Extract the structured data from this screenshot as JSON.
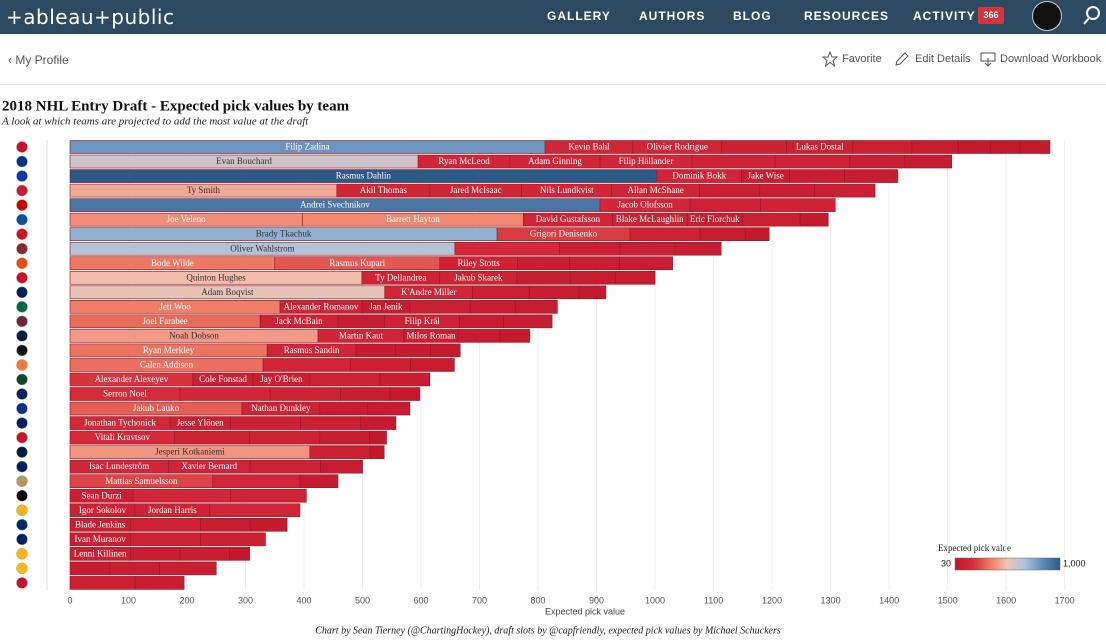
{
  "header": {
    "logo": "+ableau+public",
    "nav": [
      "GALLERY",
      "AUTHORS",
      "BLOG",
      "RESOURCES",
      "ACTIVITY"
    ],
    "badge": "366"
  },
  "toolbar": {
    "back": "My Profile",
    "actions": [
      "Favorite",
      "Edit Details",
      "Download Workbook"
    ]
  },
  "chart_data": {
    "type": "stacked-bar",
    "title": "2018 NHL Entry Draft - Expected pick values by team",
    "subtitle": "A look at which teams are projected to add the most value at the draft",
    "x_label": "Expected pick value",
    "credit": "Chart by Sean Tierney (@ChartingHockey), draft slots by @capfriendly, expected pick values by Michael Schuckers",
    "xlim": [
      0,
      1740
    ],
    "xticks": [
      0,
      100,
      200,
      300,
      400,
      500,
      600,
      700,
      800,
      900,
      1000,
      1100,
      1200,
      1300,
      1400,
      1500,
      1600,
      1700
    ],
    "grid": true,
    "legend": {
      "title": "Expected pick value",
      "min": 30,
      "max": {
        "value": 1000,
        "label": "1,000"
      },
      "colors": [
        "#c3172c",
        "#d42a3a",
        "#ee7b64",
        "#f3c3b4",
        "#a9c3dc",
        "#5f8bb8",
        "#2b5a86"
      ]
    },
    "bars": [
      {
        "values": [
          812,
          150,
          152,
          111,
          113,
          101,
          79,
          55,
          51,
          51
        ],
        "labels": [
          "Filip Zadina",
          "Kevin Bahl",
          "Olivier Rodrigue",
          null,
          "Lukas Dostal",
          null,
          null,
          null,
          null,
          null
        ]
      },
      {
        "values": [
          595,
          157,
          154,
          157,
          142,
          128,
          94,
          80
        ],
        "labels": [
          "Evan Bouchard",
          "Ryan McLeod",
          "Adam Ginning",
          "Filip Hällander",
          null,
          null,
          null,
          null
        ]
      },
      {
        "values": [
          1003,
          145,
          82,
          94,
          91
        ],
        "labels": [
          "Rasmus Dahlin",
          "Dominik Bokk",
          "Jake Wise",
          null,
          null
        ]
      },
      {
        "values": [
          456,
          159,
          157,
          154,
          150,
          103,
          94,
          103
        ],
        "labels": [
          "Ty Smith",
          "Akil Thomas",
          "Jared McIsaac",
          "Nils Lundkvist",
          "Allan McShane",
          null,
          null,
          null
        ]
      },
      {
        "values": [
          906,
          154,
          120,
          128
        ],
        "labels": [
          "Andrei Svechnikov",
          "Jacob Olofsson",
          null,
          null
        ]
      },
      {
        "values": [
          397,
          378,
          152,
          128,
          94,
          99,
          48
        ],
        "labels": [
          "Joe Veleno",
          "Barrett Hayton",
          "David Gustafsson",
          "Blake McLaughlin",
          "Eric Florchuk",
          null,
          null
        ]
      },
      {
        "values": [
          730,
          227,
          120,
          77,
          41
        ],
        "labels": [
          "Brady Tkachuk",
          "Grigori Denisenko",
          null,
          null,
          null
        ]
      },
      {
        "values": [
          658,
          179,
          103,
          94,
          79
        ],
        "labels": [
          "Oliver Wahlstrom",
          null,
          null,
          null,
          null
        ]
      },
      {
        "values": [
          350,
          282,
          133,
          89,
          85,
          91
        ],
        "labels": [
          "Bode Wilde",
          "Rasmus Kupari",
          "Riley Stotts",
          null,
          null,
          null
        ]
      },
      {
        "values": [
          499,
          133,
          132,
          91,
          77,
          68
        ],
        "labels": [
          "Quinton Hughes",
          "Ty Dellandrea",
          "Jakub Skarek",
          null,
          null,
          null
        ]
      },
      {
        "values": [
          538,
          150,
          97,
          85,
          46
        ],
        "labels": [
          "Adam Boqvist",
          "K'Andre Miller",
          null,
          null,
          null
        ]
      },
      {
        "values": [
          359,
          140,
          82,
          103,
          77,
          72
        ],
        "labels": [
          "Jett Woo",
          "Alexander Romanov",
          "Jan Jenik",
          null,
          null,
          null
        ]
      },
      {
        "values": [
          325,
          133,
          80,
          128,
          75,
          83
        ],
        "labels": [
          "Joel Farabee",
          "Jack McBain",
          null,
          "Filip Král",
          null,
          null
        ]
      },
      {
        "values": [
          424,
          147,
          92,
          72,
          51
        ],
        "labels": [
          "Noah Dobson",
          "Martin Kaut",
          "Milos Roman",
          null,
          null
        ]
      },
      {
        "values": [
          337,
          152,
          67,
          60,
          51
        ],
        "labels": [
          "Ryan Merkley",
          "Rasmus Sandin",
          null,
          null,
          null
        ]
      },
      {
        "values": [
          330,
          149,
          103,
          75
        ],
        "labels": [
          "Calen Addison",
          null,
          null,
          null
        ]
      },
      {
        "values": [
          210,
          103,
          97,
          120,
          85
        ],
        "labels": [
          "Alexander Alexeyev",
          "Cole Fonstad",
          "Jay O'Brien",
          null,
          null
        ]
      },
      {
        "values": [
          188,
          154,
          120,
          85,
          51
        ],
        "labels": [
          "Serron Noel",
          null,
          null,
          null,
          null
        ]
      },
      {
        "values": [
          294,
          133,
          82,
          72
        ],
        "labels": [
          "Jakub Lauko",
          "Nathan Dunkley",
          null,
          null
        ]
      },
      {
        "values": [
          171,
          103,
          120,
          103,
          60
        ],
        "labels": [
          "Jonathan Tychonick",
          "Jesse Ylönen",
          null,
          null,
          null
        ]
      },
      {
        "values": [
          179,
          128,
          120,
          85,
          29
        ],
        "labels": [
          "Vitali Kravtsov",
          null,
          null,
          null,
          null
        ]
      },
      {
        "values": [
          410,
          103,
          24
        ],
        "labels": [
          "Jesperi Kotkaniemi",
          null,
          null
        ]
      },
      {
        "values": [
          168,
          140,
          120,
          72
        ],
        "labels": [
          "Isac Lundeström",
          "Xavier Bernard",
          null,
          null
        ]
      },
      {
        "values": [
          244,
          149,
          65
        ],
        "labels": [
          "Mattias Samuelsson",
          null,
          null
        ]
      },
      {
        "values": [
          108,
          166,
          130
        ],
        "labels": [
          "Sean Durzi",
          null,
          null
        ]
      },
      {
        "values": [
          111,
          128,
          154
        ],
        "labels": [
          "Igor Sokolov",
          "Jordan Harris",
          null
        ]
      },
      {
        "values": [
          103,
          120,
          85,
          63
        ],
        "labels": [
          "Blade Jenkins",
          null,
          null,
          null
        ]
      },
      {
        "values": [
          103,
          120,
          111
        ],
        "labels": [
          "Ivan Muranov",
          null,
          null
        ]
      },
      {
        "values": [
          103,
          85,
          85,
          34
        ],
        "labels": [
          "Lenni Killinen",
          null,
          null,
          null
        ]
      },
      {
        "values": [
          68,
          85,
          97
        ],
        "labels": [
          null,
          null,
          null
        ]
      },
      {
        "values": [
          111,
          84
        ],
        "labels": [
          null,
          null
        ]
      }
    ]
  }
}
